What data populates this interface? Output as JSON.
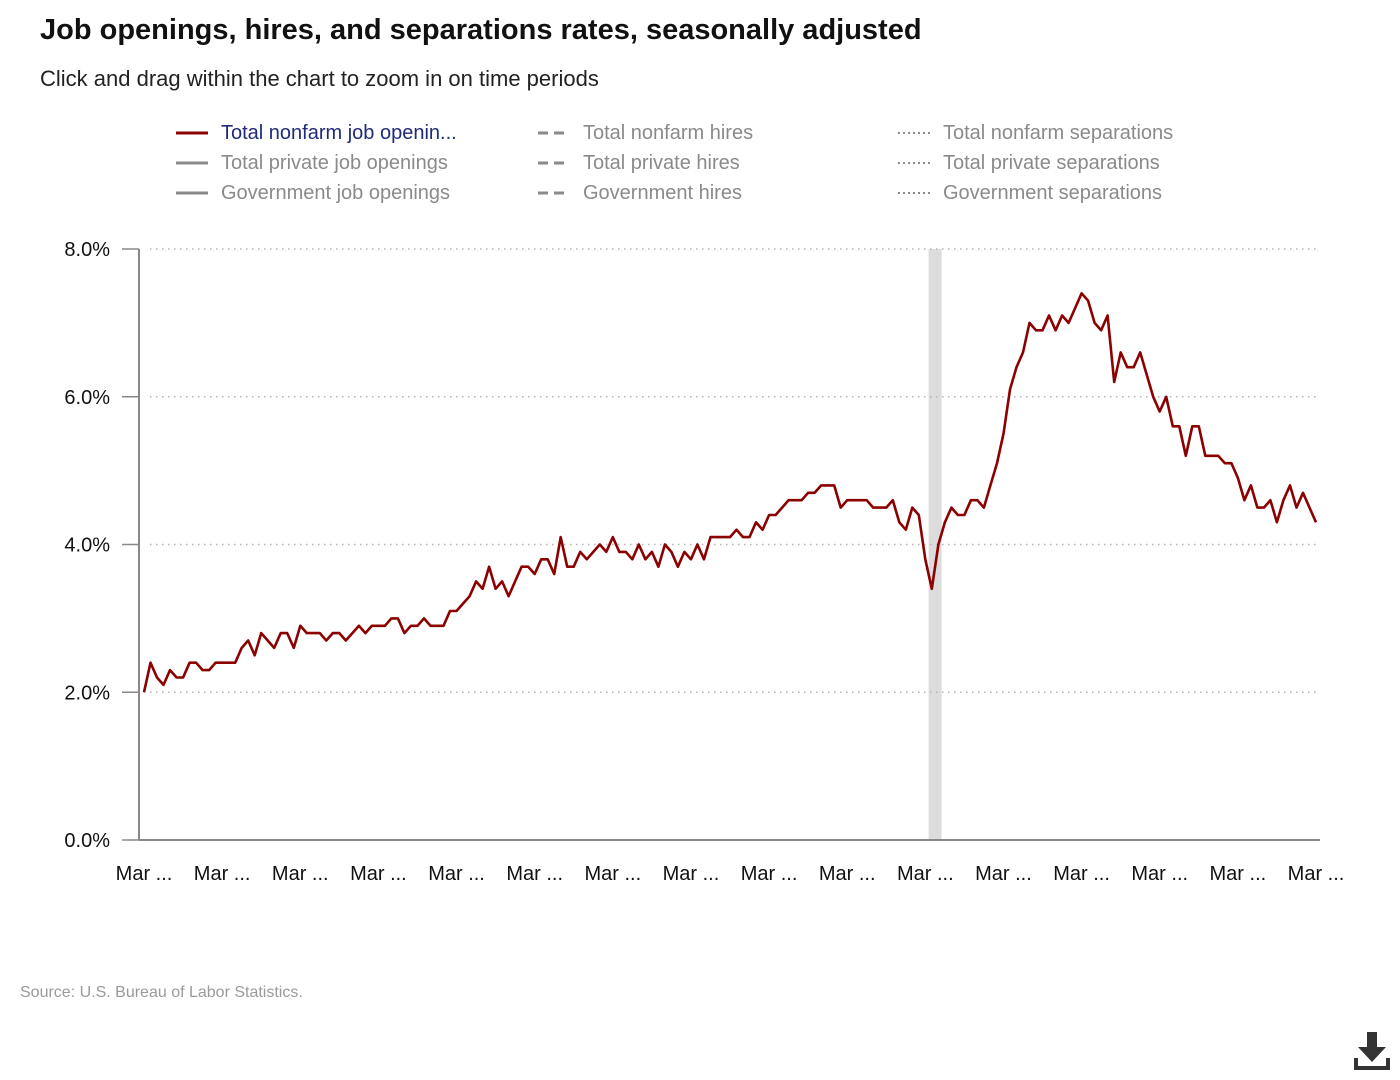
{
  "header": {
    "title": "Job openings, hires, and separations rates, seasonally adjusted",
    "subtitle": "Click and drag within the chart to zoom in on time periods"
  },
  "legend": {
    "items": [
      {
        "label": "Total nonfarm job openin...",
        "style": "solid",
        "active": true,
        "color": "#8b0000"
      },
      {
        "label": "Total nonfarm hires",
        "style": "dashed",
        "active": false,
        "color": "#8a8a8a"
      },
      {
        "label": "Total nonfarm separations",
        "style": "dotted",
        "active": false,
        "color": "#8a8a8a"
      },
      {
        "label": "Total private job openings",
        "style": "solid",
        "active": false,
        "color": "#8a8a8a"
      },
      {
        "label": "Total private hires",
        "style": "dashed",
        "active": false,
        "color": "#8a8a8a"
      },
      {
        "label": "Total private separations",
        "style": "dotted",
        "active": false,
        "color": "#8a8a8a"
      },
      {
        "label": "Government job openings",
        "style": "solid",
        "active": false,
        "color": "#8a8a8a"
      },
      {
        "label": "Government hires",
        "style": "dashed",
        "active": false,
        "color": "#8a8a8a"
      },
      {
        "label": "Government separations",
        "style": "dotted",
        "active": false,
        "color": "#8a8a8a"
      }
    ]
  },
  "chart_data": {
    "type": "line",
    "ylim": [
      0,
      8
    ],
    "y_ticks": [
      "0.0%",
      "2.0%",
      "4.0%",
      "6.0%",
      "8.0%"
    ],
    "y_tick_values": [
      0,
      2,
      4,
      6,
      8
    ],
    "x_tick_labels": [
      "Mar ...",
      "Mar ...",
      "Mar ...",
      "Mar ...",
      "Mar ...",
      "Mar ...",
      "Mar ...",
      "Mar ...",
      "Mar ...",
      "Mar ...",
      "Mar ...",
      "Mar ...",
      "Mar ...",
      "Mar ...",
      "Mar ...",
      "Mar ..."
    ],
    "grid": "horizontal-dotted",
    "shaded_period_index_range": [
      120.5,
      122.5
    ],
    "series": [
      {
        "name": "Total nonfarm job openin...",
        "color": "#8b0000",
        "values": [
          2.0,
          2.4,
          2.2,
          2.1,
          2.3,
          2.2,
          2.2,
          2.4,
          2.4,
          2.3,
          2.3,
          2.4,
          2.4,
          2.4,
          2.4,
          2.6,
          2.7,
          2.5,
          2.8,
          2.7,
          2.6,
          2.8,
          2.8,
          2.6,
          2.9,
          2.8,
          2.8,
          2.8,
          2.7,
          2.8,
          2.8,
          2.7,
          2.8,
          2.9,
          2.8,
          2.9,
          2.9,
          2.9,
          3.0,
          3.0,
          2.8,
          2.9,
          2.9,
          3.0,
          2.9,
          2.9,
          2.9,
          3.1,
          3.1,
          3.2,
          3.3,
          3.5,
          3.4,
          3.7,
          3.4,
          3.5,
          3.3,
          3.5,
          3.7,
          3.7,
          3.6,
          3.8,
          3.8,
          3.6,
          4.1,
          3.7,
          3.7,
          3.9,
          3.8,
          3.9,
          4.0,
          3.9,
          4.1,
          3.9,
          3.9,
          3.8,
          4.0,
          3.8,
          3.9,
          3.7,
          4.0,
          3.9,
          3.7,
          3.9,
          3.8,
          4.0,
          3.8,
          4.1,
          4.1,
          4.1,
          4.1,
          4.2,
          4.1,
          4.1,
          4.3,
          4.2,
          4.4,
          4.4,
          4.5,
          4.6,
          4.6,
          4.6,
          4.7,
          4.7,
          4.8,
          4.8,
          4.8,
          4.5,
          4.6,
          4.6,
          4.6,
          4.6,
          4.5,
          4.5,
          4.5,
          4.6,
          4.3,
          4.2,
          4.5,
          4.4,
          3.8,
          3.4,
          4.0,
          4.3,
          4.5,
          4.4,
          4.4,
          4.6,
          4.6,
          4.5,
          4.8,
          5.1,
          5.5,
          6.1,
          6.4,
          6.6,
          7.0,
          6.9,
          6.9,
          7.1,
          6.9,
          7.1,
          7.0,
          7.2,
          7.4,
          7.3,
          7.0,
          6.9,
          7.1,
          6.2,
          6.6,
          6.4,
          6.4,
          6.6,
          6.3,
          6.0,
          5.8,
          6.0,
          5.6,
          5.6,
          5.2,
          5.6,
          5.6,
          5.2,
          5.2,
          5.2,
          5.1,
          5.1,
          4.9,
          4.6,
          4.8,
          4.5,
          4.5,
          4.6,
          4.3,
          4.6,
          4.8,
          4.5,
          4.7,
          4.5,
          4.3
        ]
      }
    ]
  },
  "footer": {
    "source": "Source: U.S. Bureau of Labor Statistics."
  },
  "icons": {
    "download": "download-icon"
  }
}
